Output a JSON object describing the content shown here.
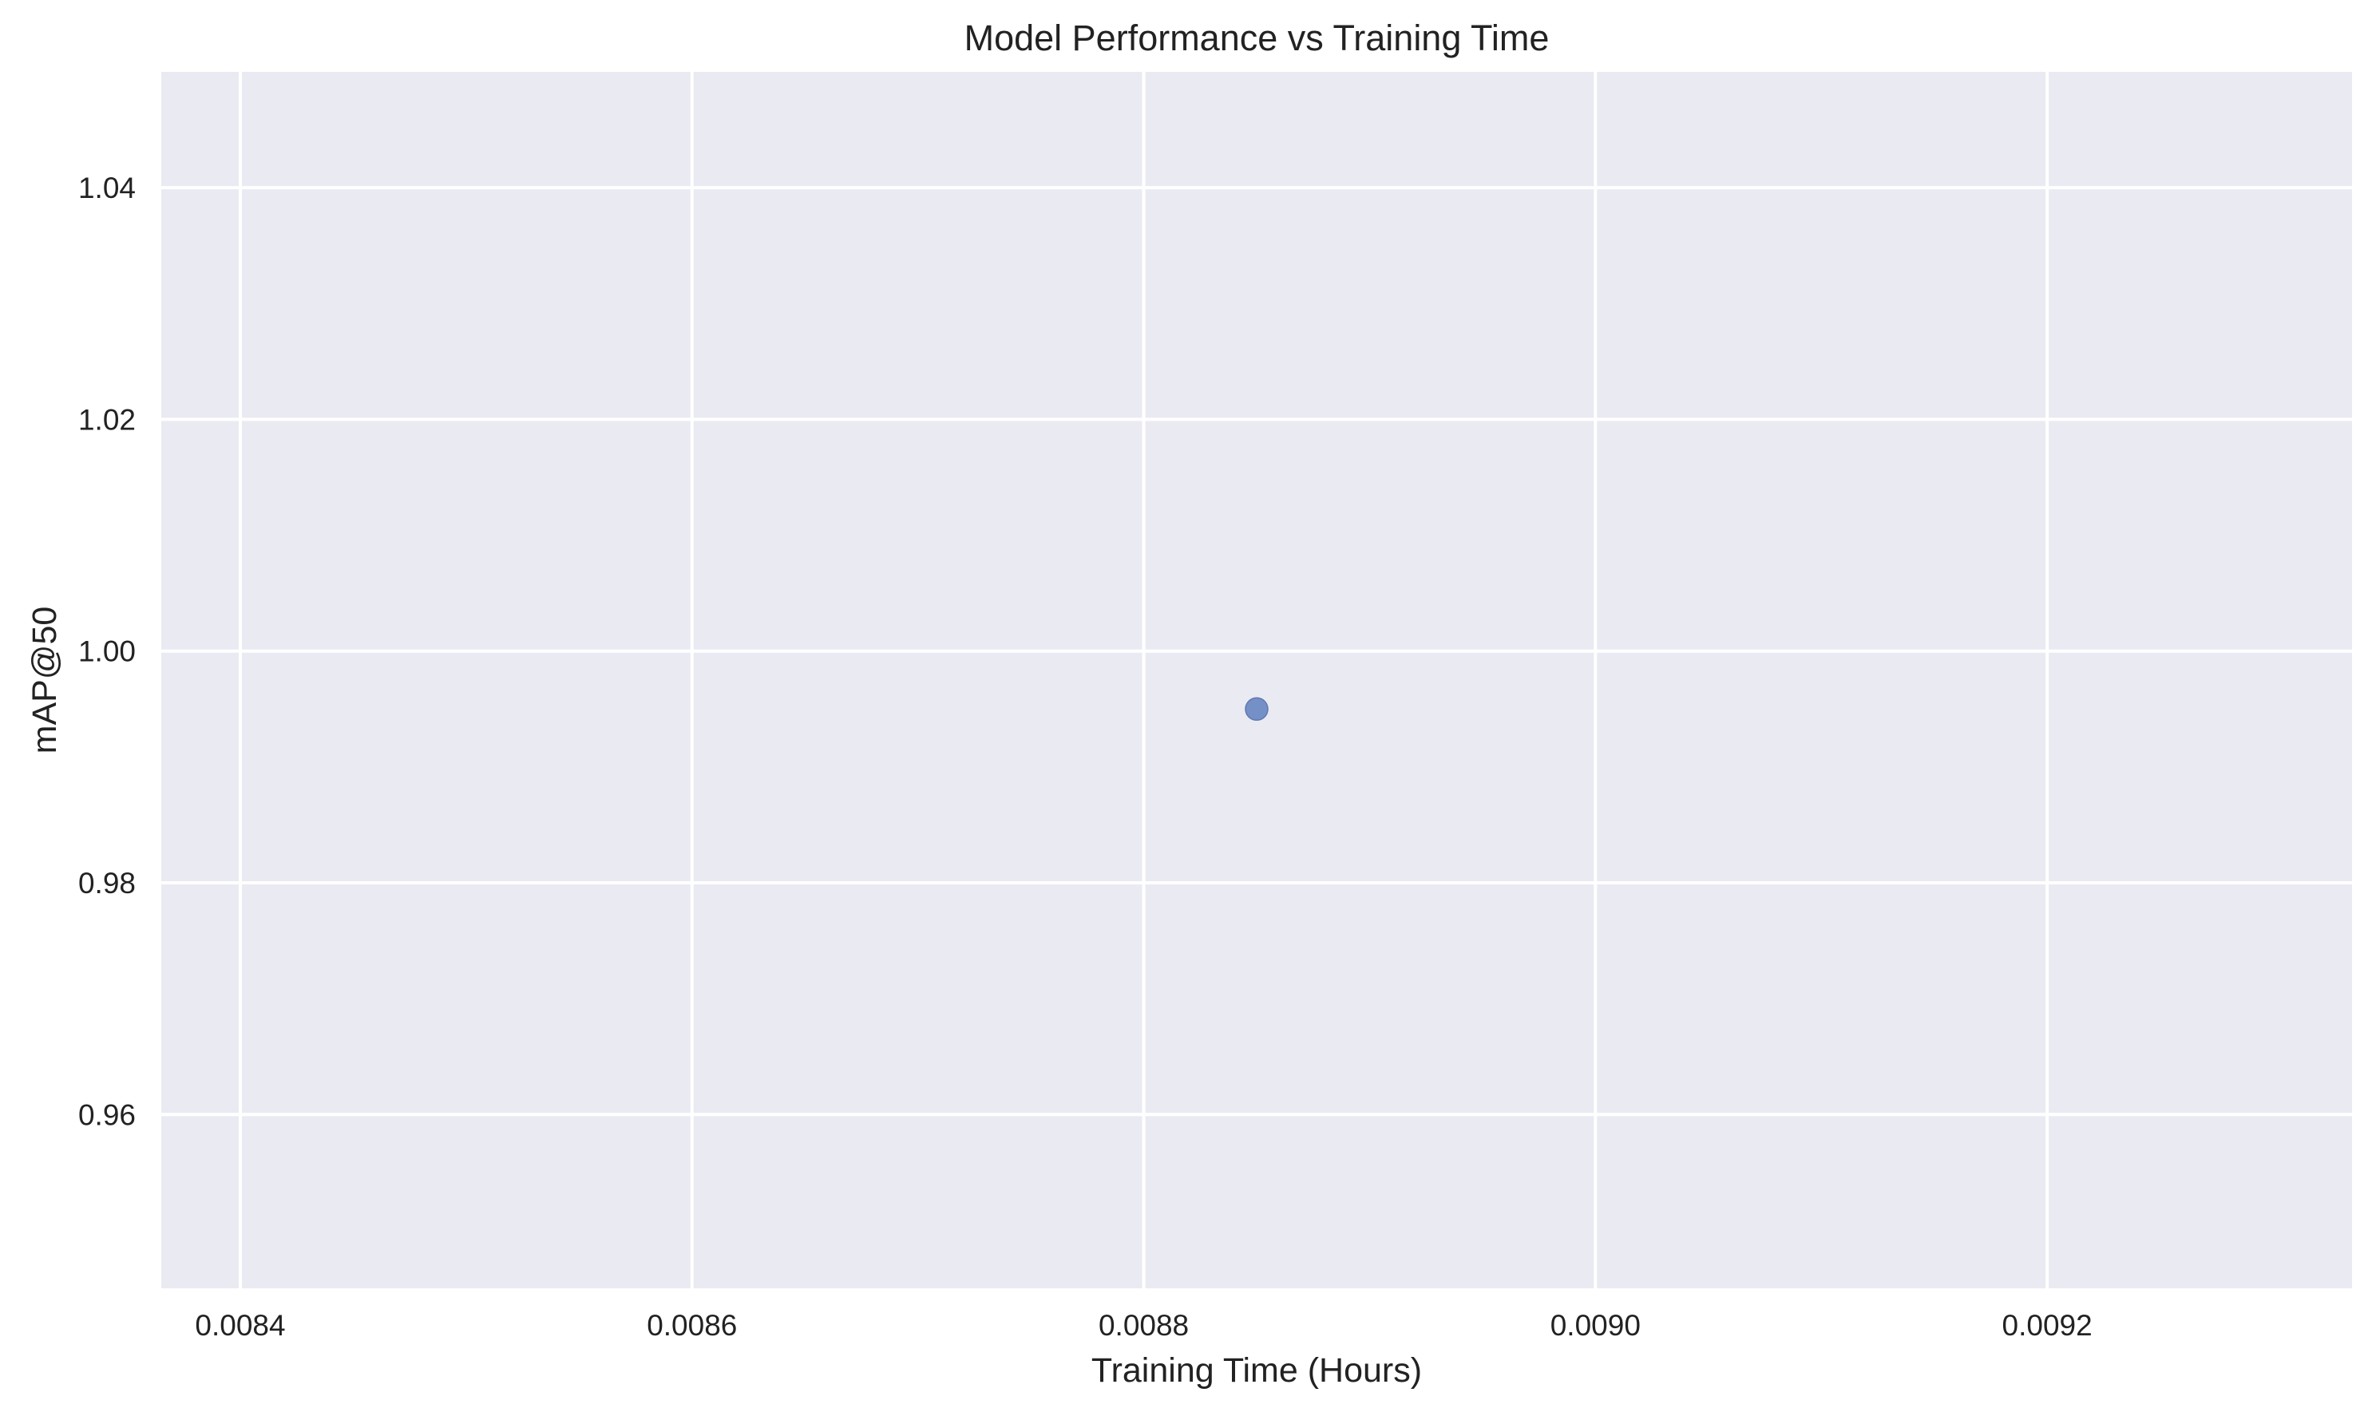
{
  "chart_data": {
    "type": "scatter",
    "title": "Model Performance vs Training Time",
    "xlabel": "Training Time (Hours)",
    "ylabel": "mAP@50",
    "xlim": [
      0.008365,
      0.009335
    ],
    "ylim": [
      0.945,
      1.05
    ],
    "xticks": [
      0.0084,
      0.0086,
      0.0088,
      0.009,
      0.0092
    ],
    "xtick_labels": [
      "0.0084",
      "0.0086",
      "0.0088",
      "0.0090",
      "0.0092"
    ],
    "yticks": [
      0.96,
      0.98,
      1.0,
      1.02,
      1.04
    ],
    "ytick_labels": [
      "0.96",
      "0.98",
      "1.00",
      "1.02",
      "1.04"
    ],
    "grid": true,
    "series": [
      {
        "points": [
          {
            "x": 0.00885,
            "y": 0.995
          }
        ]
      }
    ]
  },
  "colors": {
    "background": "#ffffff",
    "plot_background": "#eaeaf2",
    "grid": "#ffffff",
    "marker": "#7590c6",
    "marker_edge": "#5f79b3",
    "text": "#222222"
  }
}
